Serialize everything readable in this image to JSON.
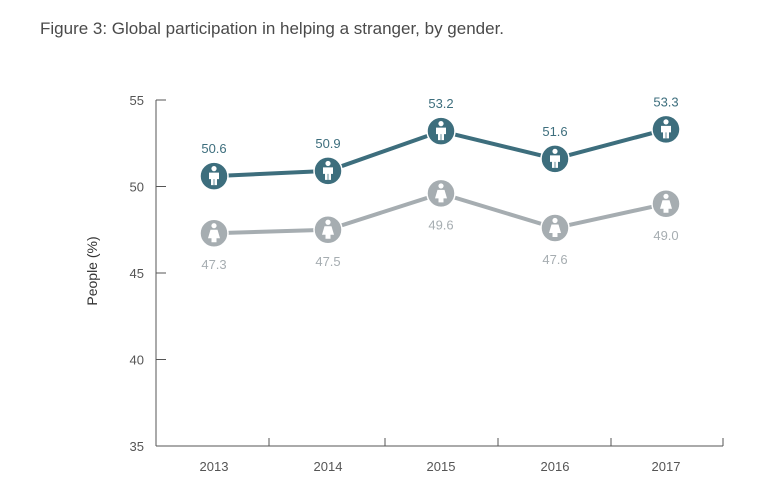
{
  "figure": {
    "title": "Figure 3: Global participation in helping a stranger, by gender."
  },
  "chart_data": {
    "type": "line",
    "title": "Figure 3: Global participation in helping a stranger, by gender.",
    "xlabel": "",
    "ylabel": "People (%)",
    "categories": [
      "2013",
      "2014",
      "2015",
      "2016",
      "2017"
    ],
    "ylim": [
      35,
      55
    ],
    "yticks": [
      35,
      40,
      45,
      50,
      55
    ],
    "grid": false,
    "legend": "none",
    "series": [
      {
        "icon": "male-figure-icon",
        "color": "#3d6e7d",
        "values": [
          50.6,
          50.9,
          53.2,
          51.6,
          53.3
        ],
        "labels": [
          "50.6",
          "50.9",
          "53.2",
          "51.6",
          "53.3"
        ]
      },
      {
        "icon": "female-figure-icon",
        "color": "#a6adb1",
        "values": [
          47.3,
          47.5,
          49.6,
          47.6,
          49.0
        ],
        "labels": [
          "47.3",
          "47.5",
          "49.6",
          "47.6",
          "49.0"
        ]
      }
    ]
  }
}
